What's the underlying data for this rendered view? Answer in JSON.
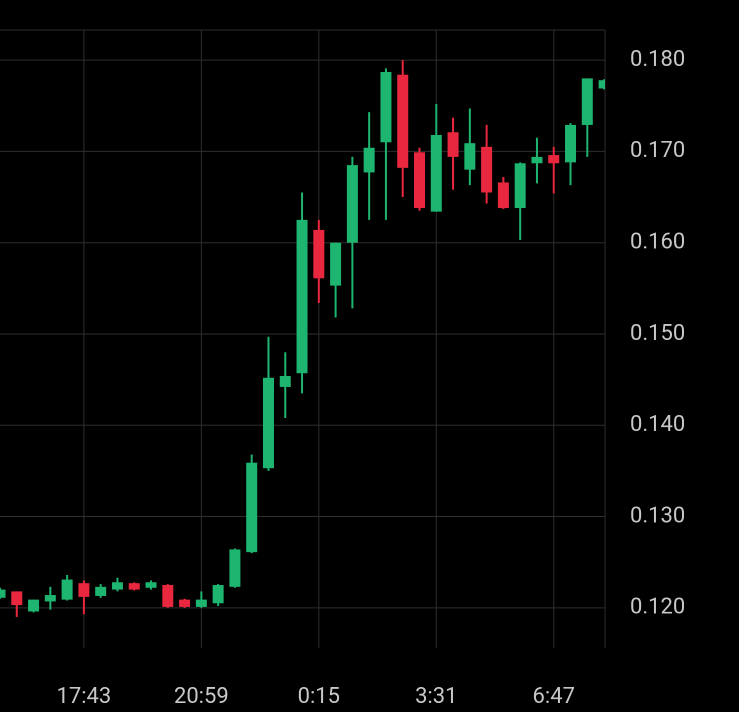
{
  "chart_data": {
    "type": "candlestick",
    "categories": [
      null,
      null,
      null,
      null,
      null,
      "17:43",
      null,
      null,
      null,
      null,
      null,
      null,
      "20:59",
      null,
      null,
      null,
      null,
      null,
      null,
      "0:15",
      null,
      null,
      null,
      null,
      null,
      null,
      "3:31",
      null,
      null,
      null,
      null,
      null,
      null,
      "6:47",
      null,
      null,
      null
    ],
    "open": [
      0.1211,
      0.1218,
      0.1196,
      0.1207,
      0.1209,
      0.1227,
      0.1213,
      0.122,
      0.1227,
      0.1222,
      0.1225,
      0.1209,
      0.1201,
      0.1205,
      0.1223,
      0.1261,
      0.1353,
      0.1442,
      0.1457,
      0.1614,
      0.1553,
      0.16,
      0.1677,
      0.171,
      0.1784,
      0.1699,
      0.1634,
      0.1721,
      0.168,
      0.1705,
      0.1666,
      0.1638,
      0.1687,
      0.1696,
      0.1688,
      0.1729,
      0.1769
    ],
    "high": [
      0.1222,
      0.1218,
      0.1209,
      0.1223,
      0.1236,
      0.123,
      0.1226,
      0.1233,
      0.1228,
      0.123,
      0.1226,
      0.121,
      0.1218,
      0.1226,
      0.1265,
      0.1368,
      0.1497,
      0.148,
      0.1655,
      0.1625,
      0.16,
      0.1694,
      0.1743,
      0.1791,
      0.18,
      0.1704,
      0.1752,
      0.1737,
      0.1747,
      0.1729,
      0.1672,
      0.1688,
      0.1715,
      0.1705,
      0.1731,
      0.178,
      0.1779
    ],
    "low": [
      0.121,
      0.119,
      0.1195,
      0.1198,
      0.1208,
      0.1193,
      0.1211,
      0.1218,
      0.1219,
      0.122,
      0.12,
      0.12,
      0.12,
      0.1202,
      0.1222,
      0.126,
      0.135,
      0.1408,
      0.1435,
      0.1534,
      0.1518,
      0.1528,
      0.1625,
      0.1625,
      0.165,
      0.1635,
      0.1634,
      0.1658,
      0.1663,
      0.1643,
      0.1637,
      0.1603,
      0.1665,
      0.1654,
      0.1663,
      0.1694,
      0.1768
    ],
    "close": [
      0.122,
      0.1203,
      0.1209,
      0.1214,
      0.1231,
      0.1212,
      0.1223,
      0.1228,
      0.122,
      0.1228,
      0.1201,
      0.1201,
      0.1209,
      0.1225,
      0.1264,
      0.1359,
      0.1452,
      0.1454,
      0.1625,
      0.1561,
      0.16,
      0.1685,
      0.1704,
      0.1787,
      0.1682,
      0.1638,
      0.1718,
      0.1694,
      0.1709,
      0.1655,
      0.1638,
      0.1687,
      0.1694,
      0.1687,
      0.1729,
      0.178,
      0.1778
    ],
    "up_color": "#1db56f",
    "down_color": "#e9283f",
    "ylim": [
      0.1156,
      0.1833
    ],
    "yticks": [
      {
        "value": 0.12,
        "label": "0.120"
      },
      {
        "value": 0.13,
        "label": "0.130"
      },
      {
        "value": 0.14,
        "label": "0.140"
      },
      {
        "value": 0.15,
        "label": "0.150"
      },
      {
        "value": 0.16,
        "label": "0.160"
      },
      {
        "value": 0.17,
        "label": "0.170"
      },
      {
        "value": 0.18,
        "label": "0.180"
      }
    ],
    "grid": true
  }
}
